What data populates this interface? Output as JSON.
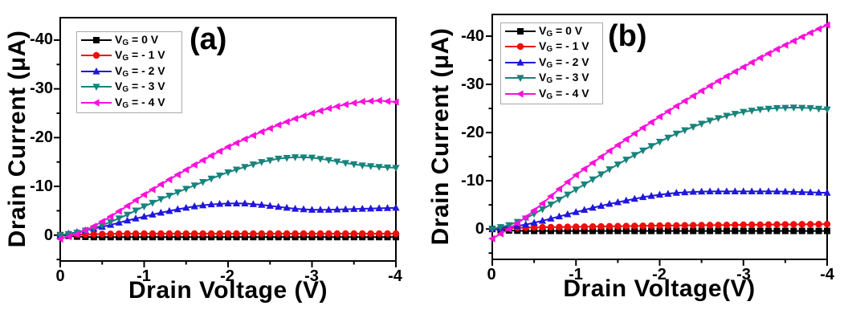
{
  "figure": {
    "background": "#ffffff",
    "axis_color": "#000000"
  },
  "chart_data": [
    {
      "type": "line",
      "panel_label": "(a)",
      "xlabel": "Drain Voltage (V)",
      "ylabel": "Drain Current (μA)",
      "xlim": [
        0,
        -4
      ],
      "ylim_bottom": 5.3,
      "ylim_top": -44.6,
      "x_tick_labels": [
        "0",
        "-1",
        "-2",
        "-3",
        "-4"
      ],
      "y_tick_labels": [
        "0",
        "-10",
        "-20",
        "-30",
        "-40"
      ],
      "x_major_ticks": [
        0,
        -1,
        -2,
        -3,
        -4
      ],
      "y_major_ticks": [
        0,
        -10,
        -20,
        -30,
        -40
      ],
      "x_minor_step": 0.5,
      "y_minor_step": 5,
      "legend_position": "top-left",
      "grid": false,
      "x": [
        0,
        -0.2,
        -0.4,
        -0.6,
        -0.8,
        -1,
        -1.2,
        -1.4,
        -1.6,
        -1.8,
        -2,
        -2.2,
        -2.4,
        -2.6,
        -2.8,
        -3,
        -3.2,
        -3.4,
        -3.6,
        -3.8,
        -4
      ],
      "series": [
        {
          "label_prefix": "V",
          "label_sub": "G",
          "label_rest": " = 0 V",
          "color": "#000000",
          "marker": "square",
          "values": [
            0,
            0.3,
            0.4,
            0.4,
            0.4,
            0.4,
            0.4,
            0.4,
            0.4,
            0.4,
            0.4,
            0.4,
            0.4,
            0.4,
            0.4,
            0.4,
            0.4,
            0.4,
            0.4,
            0.4,
            0.4
          ]
        },
        {
          "label_prefix": "V",
          "label_sub": "G",
          "label_rest": " = - 1 V",
          "color": "#f20d0d",
          "marker": "circle",
          "values": [
            0,
            -0.1,
            -0.2,
            -0.25,
            -0.3,
            -0.3,
            -0.3,
            -0.3,
            -0.3,
            -0.3,
            -0.3,
            -0.3,
            -0.3,
            -0.3,
            -0.3,
            -0.3,
            -0.3,
            -0.3,
            -0.3,
            -0.3,
            -0.3
          ]
        },
        {
          "label_prefix": "V",
          "label_sub": "G",
          "label_rest": " = - 2 V",
          "color": "#2016dc",
          "marker": "triangle-up",
          "values": [
            0,
            -0.6,
            -1.3,
            -2.1,
            -3.0,
            -3.8,
            -4.6,
            -5.3,
            -5.9,
            -6.3,
            -6.5,
            -6.5,
            -6.2,
            -5.8,
            -5.4,
            -5.2,
            -5.2,
            -5.3,
            -5.4,
            -5.5,
            -5.6
          ]
        },
        {
          "label_prefix": "V",
          "label_sub": "G",
          "label_rest": " = - 3 V",
          "color": "#17837c",
          "marker": "triangle-down",
          "values": [
            0,
            -0.5,
            -1.4,
            -2.7,
            -4.2,
            -5.9,
            -7.4,
            -8.8,
            -10.2,
            -11.6,
            -12.9,
            -14.0,
            -15.0,
            -15.7,
            -16.0,
            -15.9,
            -15.4,
            -14.8,
            -14.3,
            -14.0,
            -13.8
          ]
        },
        {
          "label_prefix": "V",
          "label_sub": "G",
          "label_rest": " = - 4 V",
          "color": "#fb10dc",
          "marker": "triangle-left",
          "values": [
            0.8,
            -0.2,
            -1.8,
            -3.8,
            -6.0,
            -8.3,
            -10.4,
            -12.4,
            -14.4,
            -16.3,
            -18.1,
            -19.7,
            -21.2,
            -22.6,
            -23.9,
            -25.0,
            -26.0,
            -26.8,
            -27.4,
            -27.6,
            -27.3
          ]
        }
      ]
    },
    {
      "type": "line",
      "panel_label": "(b)",
      "xlabel": "Drain Voltage(V)",
      "ylabel": "Drain Current (μA)",
      "xlim": [
        0,
        -4
      ],
      "ylim_bottom": 6.3,
      "ylim_top": -44.5,
      "x_tick_labels": [
        "0",
        "-1",
        "-2",
        "-3",
        "-4"
      ],
      "y_tick_labels": [
        "0",
        "-10",
        "-20",
        "-30",
        "-40"
      ],
      "x_major_ticks": [
        0,
        -1,
        -2,
        -3,
        -4
      ],
      "y_major_ticks": [
        0,
        -10,
        -20,
        -30,
        -40
      ],
      "x_minor_step": 0.5,
      "y_minor_step": 5,
      "legend_position": "top-left",
      "grid": false,
      "x": [
        0,
        -0.2,
        -0.4,
        -0.6,
        -0.8,
        -1,
        -1.2,
        -1.4,
        -1.6,
        -1.8,
        -2,
        -2.2,
        -2.4,
        -2.6,
        -2.8,
        -3,
        -3.2,
        -3.4,
        -3.6,
        -3.8,
        -4
      ],
      "series": [
        {
          "label_prefix": "V",
          "label_sub": "G",
          "label_rest": " = 0 V",
          "color": "#000000",
          "marker": "square",
          "values": [
            0,
            0.3,
            0.4,
            0.4,
            0.4,
            0.4,
            0.4,
            0.4,
            0.4,
            0.4,
            0.4,
            0.4,
            0.4,
            0.4,
            0.4,
            0.4,
            0.4,
            0.4,
            0.4,
            0.4,
            0.4
          ]
        },
        {
          "label_prefix": "V",
          "label_sub": "G",
          "label_rest": " = - 1 V",
          "color": "#f20d0d",
          "marker": "circle",
          "values": [
            0,
            -0.2,
            -0.3,
            -0.35,
            -0.4,
            -0.45,
            -0.5,
            -0.55,
            -0.6,
            -0.65,
            -0.7,
            -0.73,
            -0.77,
            -0.8,
            -0.83,
            -0.87,
            -0.9,
            -0.93,
            -0.95,
            -0.98,
            -1.0
          ]
        },
        {
          "label_prefix": "V",
          "label_sub": "G",
          "label_rest": " = - 2 V",
          "color": "#2016dc",
          "marker": "triangle-up",
          "values": [
            0,
            -0.4,
            -0.9,
            -1.7,
            -2.6,
            -3.5,
            -4.4,
            -5.2,
            -5.9,
            -6.6,
            -7.1,
            -7.5,
            -7.7,
            -7.8,
            -7.8,
            -7.8,
            -7.8,
            -7.8,
            -7.7,
            -7.6,
            -7.5
          ]
        },
        {
          "label_prefix": "V",
          "label_sub": "G",
          "label_rest": " = - 3 V",
          "color": "#17837c",
          "marker": "triangle-down",
          "values": [
            0,
            -0.8,
            -2.2,
            -4.1,
            -6.1,
            -8.2,
            -10.3,
            -12.4,
            -14.4,
            -16.3,
            -18.1,
            -19.8,
            -21.2,
            -22.5,
            -23.5,
            -24.3,
            -24.8,
            -25.1,
            -25.2,
            -25.1,
            -24.8
          ]
        },
        {
          "label_prefix": "V",
          "label_sub": "G",
          "label_rest": " = - 4 V",
          "color": "#fb10dc",
          "marker": "triangle-left",
          "values": [
            2.0,
            0.0,
            -2.4,
            -5.3,
            -8.3,
            -11.2,
            -13.7,
            -16.2,
            -18.6,
            -21.0,
            -23.3,
            -25.5,
            -27.6,
            -29.7,
            -31.7,
            -33.6,
            -35.5,
            -37.3,
            -39.0,
            -40.7,
            -42.3
          ]
        }
      ]
    }
  ]
}
